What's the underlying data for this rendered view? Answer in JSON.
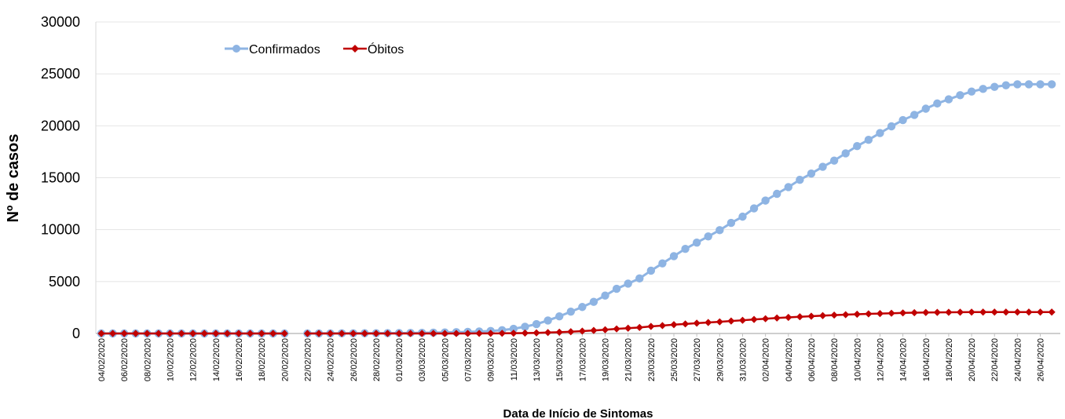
{
  "chart_data": {
    "type": "line",
    "title": "",
    "xlabel": "Data de Início de Sintomas",
    "ylabel": "Nº de casos",
    "ylim": [
      0,
      30000
    ],
    "yticks": [
      0,
      5000,
      10000,
      15000,
      20000,
      25000,
      30000
    ],
    "grid": "horizontal",
    "legend_position": "top-left",
    "x_ticks_shown": [
      "04/02/2020",
      "06/02/2020",
      "08/02/2020",
      "10/02/2020",
      "12/02/2020",
      "14/02/2020",
      "16/02/2020",
      "18/02/2020",
      "20/02/2020",
      "22/02/2020",
      "24/02/2020",
      "26/02/2020",
      "28/02/2020",
      "01/03/2020",
      "03/03/2020",
      "05/03/2020",
      "07/03/2020",
      "09/03/2020",
      "11/03/2020",
      "13/03/2020",
      "15/03/2020",
      "17/03/2020",
      "19/03/2020",
      "21/03/2020",
      "23/03/2020",
      "25/03/2020",
      "27/03/2020",
      "29/03/2020",
      "31/03/2020",
      "02/04/2020",
      "04/04/2020",
      "06/04/2020",
      "08/04/2020",
      "10/04/2020",
      "12/04/2020",
      "14/04/2020",
      "16/04/2020",
      "18/04/2020",
      "20/04/2020",
      "22/04/2020",
      "24/04/2020",
      "26/04/2020"
    ],
    "x": [
      "04/02/2020",
      "05/02/2020",
      "06/02/2020",
      "07/02/2020",
      "08/02/2020",
      "09/02/2020",
      "10/02/2020",
      "11/02/2020",
      "12/02/2020",
      "13/02/2020",
      "14/02/2020",
      "15/02/2020",
      "16/02/2020",
      "17/02/2020",
      "18/02/2020",
      "19/02/2020",
      "20/02/2020",
      "21/02/2020",
      "22/02/2020",
      "23/02/2020",
      "24/02/2020",
      "25/02/2020",
      "26/02/2020",
      "27/02/2020",
      "28/02/2020",
      "29/02/2020",
      "01/03/2020",
      "02/03/2020",
      "03/03/2020",
      "04/03/2020",
      "05/03/2020",
      "06/03/2020",
      "07/03/2020",
      "08/03/2020",
      "09/03/2020",
      "10/03/2020",
      "11/03/2020",
      "12/03/2020",
      "13/03/2020",
      "14/03/2020",
      "15/03/2020",
      "16/03/2020",
      "17/03/2020",
      "18/03/2020",
      "19/03/2020",
      "20/03/2020",
      "21/03/2020",
      "22/03/2020",
      "23/03/2020",
      "24/03/2020",
      "25/03/2020",
      "26/03/2020",
      "27/03/2020",
      "28/03/2020",
      "29/03/2020",
      "30/03/2020",
      "31/03/2020",
      "01/04/2020",
      "02/04/2020",
      "03/04/2020",
      "04/04/2020",
      "05/04/2020",
      "06/04/2020",
      "07/04/2020",
      "08/04/2020",
      "09/04/2020",
      "10/04/2020",
      "11/04/2020",
      "12/04/2020",
      "13/04/2020",
      "14/04/2020",
      "15/04/2020",
      "16/04/2020",
      "17/04/2020",
      "18/04/2020",
      "19/04/2020",
      "20/04/2020",
      "21/04/2020",
      "22/04/2020",
      "23/04/2020",
      "24/04/2020",
      "25/04/2020",
      "26/04/2020",
      "27/04/2020"
    ],
    "series": [
      {
        "name": "Confirmados",
        "color": "#8eb4e3",
        "marker": "circle",
        "values": [
          0,
          0,
          0,
          0,
          0,
          0,
          0,
          0,
          0,
          0,
          0,
          0,
          0,
          0,
          0,
          0,
          0,
          null,
          2,
          5,
          8,
          12,
          16,
          20,
          25,
          30,
          40,
          50,
          65,
          80,
          100,
          125,
          155,
          190,
          240,
          320,
          450,
          650,
          900,
          1250,
          1650,
          2100,
          2550,
          3050,
          3650,
          4300,
          4800,
          5300,
          6050,
          6750,
          7450,
          8150,
          8750,
          9350,
          9950,
          10650,
          11250,
          12050,
          12800,
          13450,
          14100,
          14800,
          15400,
          16050,
          16650,
          17350,
          18050,
          18650,
          19300,
          19950,
          20550,
          21050,
          21650,
          22150,
          22550,
          22950,
          23300,
          23550,
          23750,
          23900,
          24000,
          24000,
          24000,
          24000
        ]
      },
      {
        "name": "Óbitos",
        "color": "#c00000",
        "marker": "diamond",
        "values": [
          0,
          0,
          0,
          0,
          0,
          0,
          0,
          0,
          0,
          0,
          0,
          0,
          0,
          0,
          0,
          0,
          0,
          null,
          0,
          0,
          0,
          0,
          0,
          0,
          0,
          0,
          0,
          0,
          0,
          0,
          0,
          2,
          4,
          6,
          10,
          15,
          25,
          40,
          60,
          90,
          120,
          170,
          230,
          290,
          360,
          440,
          510,
          580,
          680,
          760,
          850,
          920,
          990,
          1060,
          1120,
          1200,
          1270,
          1350,
          1420,
          1490,
          1550,
          1610,
          1660,
          1720,
          1770,
          1810,
          1850,
          1890,
          1920,
          1950,
          1980,
          2000,
          2020,
          2030,
          2040,
          2050,
          2055,
          2060,
          2060,
          2060,
          2060,
          2060,
          2060,
          2060
        ]
      }
    ]
  }
}
